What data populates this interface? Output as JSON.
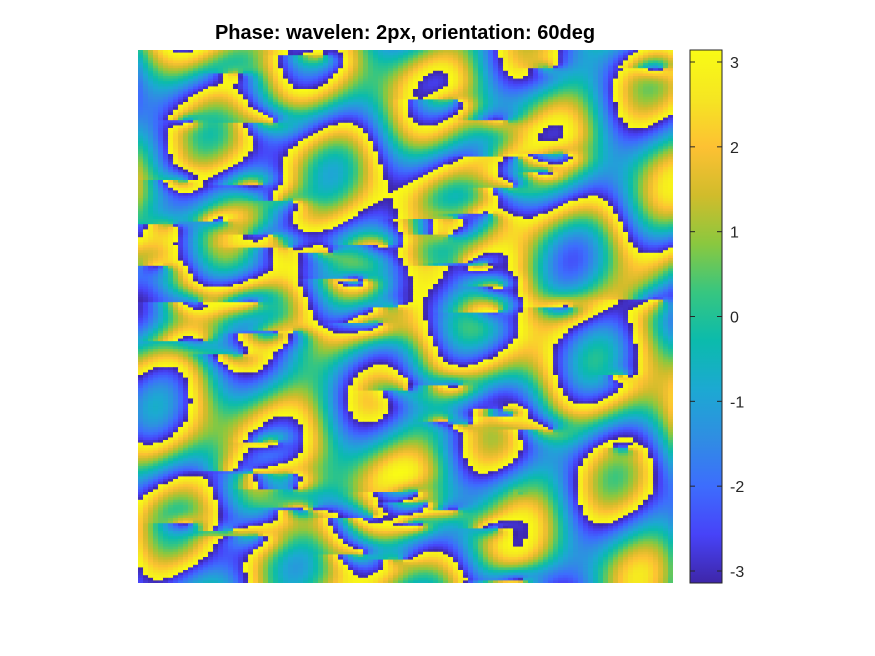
{
  "chart_data": {
    "type": "heatmap",
    "title": "Phase: wavelen: 2px, orientation: 60deg",
    "xlabel": "",
    "ylabel": "",
    "colormap": "parula",
    "colormap_stops": [
      "#3e26a8",
      "#4743f8",
      "#3d6dfd",
      "#2f8ee2",
      "#1ca9d2",
      "#0bbbac",
      "#37c680",
      "#8ac83f",
      "#d1bc2b",
      "#fdc133",
      "#f5e622",
      "#f9fb15"
    ],
    "clim": [
      -3.14159,
      3.14159
    ],
    "colorbar": {
      "ticks": [
        3,
        2,
        1,
        0,
        -1,
        -2,
        -3
      ],
      "tick_labels": [
        "3",
        "2",
        "1",
        "0",
        "-1",
        "-2",
        "-3"
      ],
      "placement": "right"
    },
    "grid": false,
    "pattern": "wrapped phase of a Gabor filter response: dense horizontal stripes with blob-like phase singularities"
  }
}
